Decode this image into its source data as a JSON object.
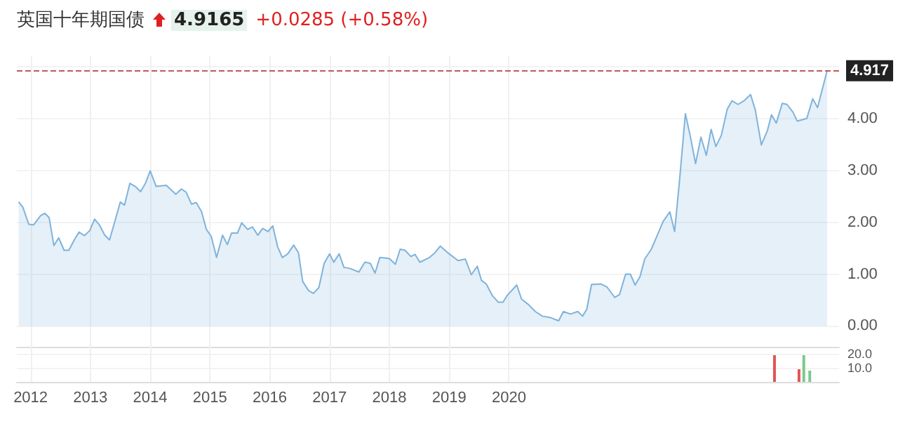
{
  "chart_data": [
    {
      "type": "area",
      "title": "英国十年期国债",
      "annotations": [
        "4.9165",
        "+0.0285 (+0.58%)"
      ],
      "x": [
        2011.8,
        2011.87,
        2011.97,
        2012.05,
        2012.17,
        2012.24,
        2012.31,
        2012.39,
        2012.47,
        2012.56,
        2012.64,
        2012.74,
        2012.81,
        2012.9,
        2012.99,
        2013.07,
        2013.15,
        2013.24,
        2013.32,
        2013.41,
        2013.5,
        2013.57,
        2013.66,
        2013.75,
        2013.84,
        2013.92,
        2014.0,
        2014.1,
        2014.27,
        2014.43,
        2014.52,
        2014.6,
        2014.69,
        2014.77,
        2014.86,
        2014.94,
        2015.02,
        2015.11,
        2015.21,
        2015.29,
        2015.36,
        2015.46,
        2015.53,
        2015.63,
        2015.71,
        2015.8,
        2015.88,
        2015.97,
        2016.05,
        2016.13,
        2016.21,
        2016.3,
        2016.4,
        2016.48,
        2016.55,
        2016.65,
        2016.73,
        2016.82,
        2016.91,
        2017.0,
        2017.07,
        2017.16,
        2017.24,
        2017.34,
        2017.49,
        2017.59,
        2017.68,
        2017.76,
        2017.84,
        2018.0,
        2018.1,
        2018.18,
        2018.26,
        2018.36,
        2018.43,
        2018.51,
        2018.67,
        2018.76,
        2018.85,
        2018.93,
        2019.0,
        2019.15,
        2019.27,
        2019.37,
        2019.47,
        2019.54,
        2019.62,
        2019.72,
        2019.82,
        2019.9,
        2019.97,
        2020.13,
        2020.21,
        2020.33,
        2020.44,
        2020.56,
        2020.7,
        2020.83,
        2020.91,
        2021.03,
        2021.15,
        2021.23,
        2021.3,
        2021.38,
        2021.54,
        2021.64,
        2021.77,
        2021.85,
        2021.95,
        2022.03,
        2022.11,
        2022.19,
        2022.27,
        2022.38,
        2022.48,
        2022.58,
        2022.69,
        2022.77,
        2022.85,
        2022.95,
        2023.03,
        2023.12,
        2023.21,
        2023.3,
        2023.38,
        2023.46,
        2023.55,
        2023.65,
        2023.73,
        2023.83,
        2023.93,
        2024.04,
        2024.12,
        2024.22,
        2024.32,
        2024.39,
        2024.47,
        2024.57,
        2024.65,
        2024.75,
        2024.82,
        2024.98,
        2025.08,
        2025.16,
        2025.32
      ],
      "series": [
        {
          "color": "#7fb3dc",
          "values": [
            2.39,
            2.29,
            1.96,
            1.95,
            2.13,
            2.17,
            2.09,
            1.55,
            1.7,
            1.46,
            1.46,
            1.68,
            1.81,
            1.74,
            1.84,
            2.06,
            1.95,
            1.75,
            1.66,
            2.02,
            2.39,
            2.33,
            2.75,
            2.69,
            2.59,
            2.75,
            2.99,
            2.69,
            2.71,
            2.54,
            2.64,
            2.58,
            2.35,
            2.38,
            2.2,
            1.86,
            1.73,
            1.32,
            1.75,
            1.57,
            1.79,
            1.79,
            1.99,
            1.86,
            1.91,
            1.75,
            1.88,
            1.82,
            1.93,
            1.53,
            1.32,
            1.39,
            1.56,
            1.41,
            0.86,
            0.68,
            0.63,
            0.74,
            1.21,
            1.39,
            1.23,
            1.39,
            1.13,
            1.11,
            1.04,
            1.23,
            1.21,
            1.02,
            1.32,
            1.3,
            1.19,
            1.48,
            1.46,
            1.34,
            1.38,
            1.23,
            1.32,
            1.41,
            1.54,
            1.46,
            1.39,
            1.26,
            1.29,
            0.99,
            1.15,
            0.88,
            0.81,
            0.59,
            0.46,
            0.46,
            0.59,
            0.79,
            0.52,
            0.41,
            0.28,
            0.19,
            0.16,
            0.1,
            0.28,
            0.23,
            0.28,
            0.19,
            0.32,
            0.8,
            0.81,
            0.75,
            0.55,
            0.61,
            1.0,
            1.0,
            0.79,
            0.95,
            1.29,
            1.48,
            1.75,
            2.02,
            2.2,
            1.82,
            2.78,
            4.09,
            3.67,
            3.13,
            3.64,
            3.29,
            3.79,
            3.46,
            3.67,
            4.18,
            4.34,
            4.27,
            4.34,
            4.46,
            4.16,
            3.49,
            3.76,
            4.07,
            3.91,
            4.29,
            4.27,
            4.12,
            3.95,
            4.0,
            4.38,
            4.21,
            4.92
          ]
        }
      ],
      "xlim": [
        2011.77,
        2025.52
      ],
      "xticks": [
        2012,
        2013,
        2014,
        2015,
        2016,
        2017,
        2018,
        2019,
        2020
      ],
      "ylim": [
        -0.4,
        5.2
      ],
      "yticks": [
        {
          "value": 0,
          "label": "0.00"
        },
        {
          "value": 1,
          "label": "1.00"
        },
        {
          "value": 2,
          "label": "2.00"
        },
        {
          "value": 3,
          "label": "3.00"
        },
        {
          "value": 4,
          "label": "4.00"
        },
        {
          "value": 5,
          "label": null
        }
      ],
      "ref_lines": [
        {
          "axis": "y",
          "value": 4.917,
          "label": "4.917",
          "color": "#c05a5a",
          "line_style": "dashed"
        }
      ],
      "grid": true,
      "tick_labels": "y",
      "marker": "none",
      "line_style": "solid"
    },
    {
      "type": "bar",
      "x": [
        2024.44,
        2024.85,
        2024.93,
        2025.03
      ],
      "values": [
        19,
        9,
        19,
        8
      ],
      "colors": [
        "#e05555",
        "#e05555",
        "#7cc98f",
        "#7cc98f"
      ],
      "xlim": [
        2011.77,
        2025.52
      ],
      "xticks": [
        2012,
        2013,
        2014,
        2015,
        2016,
        2017,
        2018,
        2019,
        2020
      ],
      "ylim": [
        0,
        26
      ],
      "yticks": [
        {
          "value": 10,
          "label": "10.0"
        },
        {
          "value": 20,
          "label": "20.0"
        }
      ],
      "grid": true
    }
  ]
}
